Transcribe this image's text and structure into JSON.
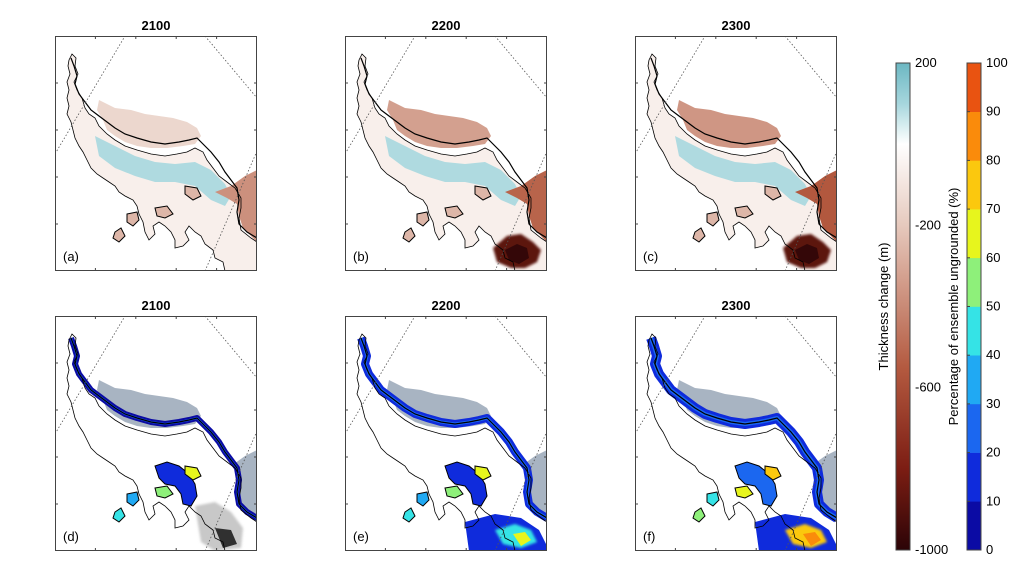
{
  "figure": {
    "panels": [
      {
        "id": "a",
        "label": "(a)",
        "title": "2100",
        "variable": "thickness_change"
      },
      {
        "id": "b",
        "label": "(b)",
        "title": "2200",
        "variable": "thickness_change"
      },
      {
        "id": "c",
        "label": "(c)",
        "title": "2300",
        "variable": "thickness_change"
      },
      {
        "id": "d",
        "label": "(d)",
        "title": "2100",
        "variable": "percent_ungrounded"
      },
      {
        "id": "e",
        "label": "(e)",
        "title": "2200",
        "variable": "percent_ungrounded"
      },
      {
        "id": "f",
        "label": "(f)",
        "title": "2300",
        "variable": "percent_ungrounded"
      }
    ]
  },
  "chart_data": [
    {
      "type": "heatmap",
      "label": "Thickness change (m)",
      "range": [
        -1000,
        200
      ],
      "ticks": [
        "200",
        "-200",
        "-600",
        "-1000"
      ],
      "tick_values": [
        200,
        -200,
        -600,
        -1000
      ],
      "colors": [
        "#2c0407",
        "#7c1d13",
        "#b45a40",
        "#e6c9bd",
        "#ffffff",
        "#a6d6dd",
        "#6cb7c2"
      ]
    },
    {
      "type": "heatmap",
      "label": "Percentage of ensemble ungrounded (%)",
      "range": [
        0,
        100
      ],
      "ticks": [
        "0",
        "10",
        "20",
        "30",
        "40",
        "50",
        "60",
        "70",
        "80",
        "90",
        "100"
      ],
      "tick_values": [
        0,
        10,
        20,
        30,
        40,
        50,
        60,
        70,
        80,
        90,
        100
      ],
      "colors": [
        "#0b0ba4",
        "#0f2bdc",
        "#1b67f0",
        "#20a9f3",
        "#35e3e6",
        "#8ef07a",
        "#e7f51d",
        "#fbc80e",
        "#fa8b0b",
        "#e95311"
      ]
    }
  ]
}
